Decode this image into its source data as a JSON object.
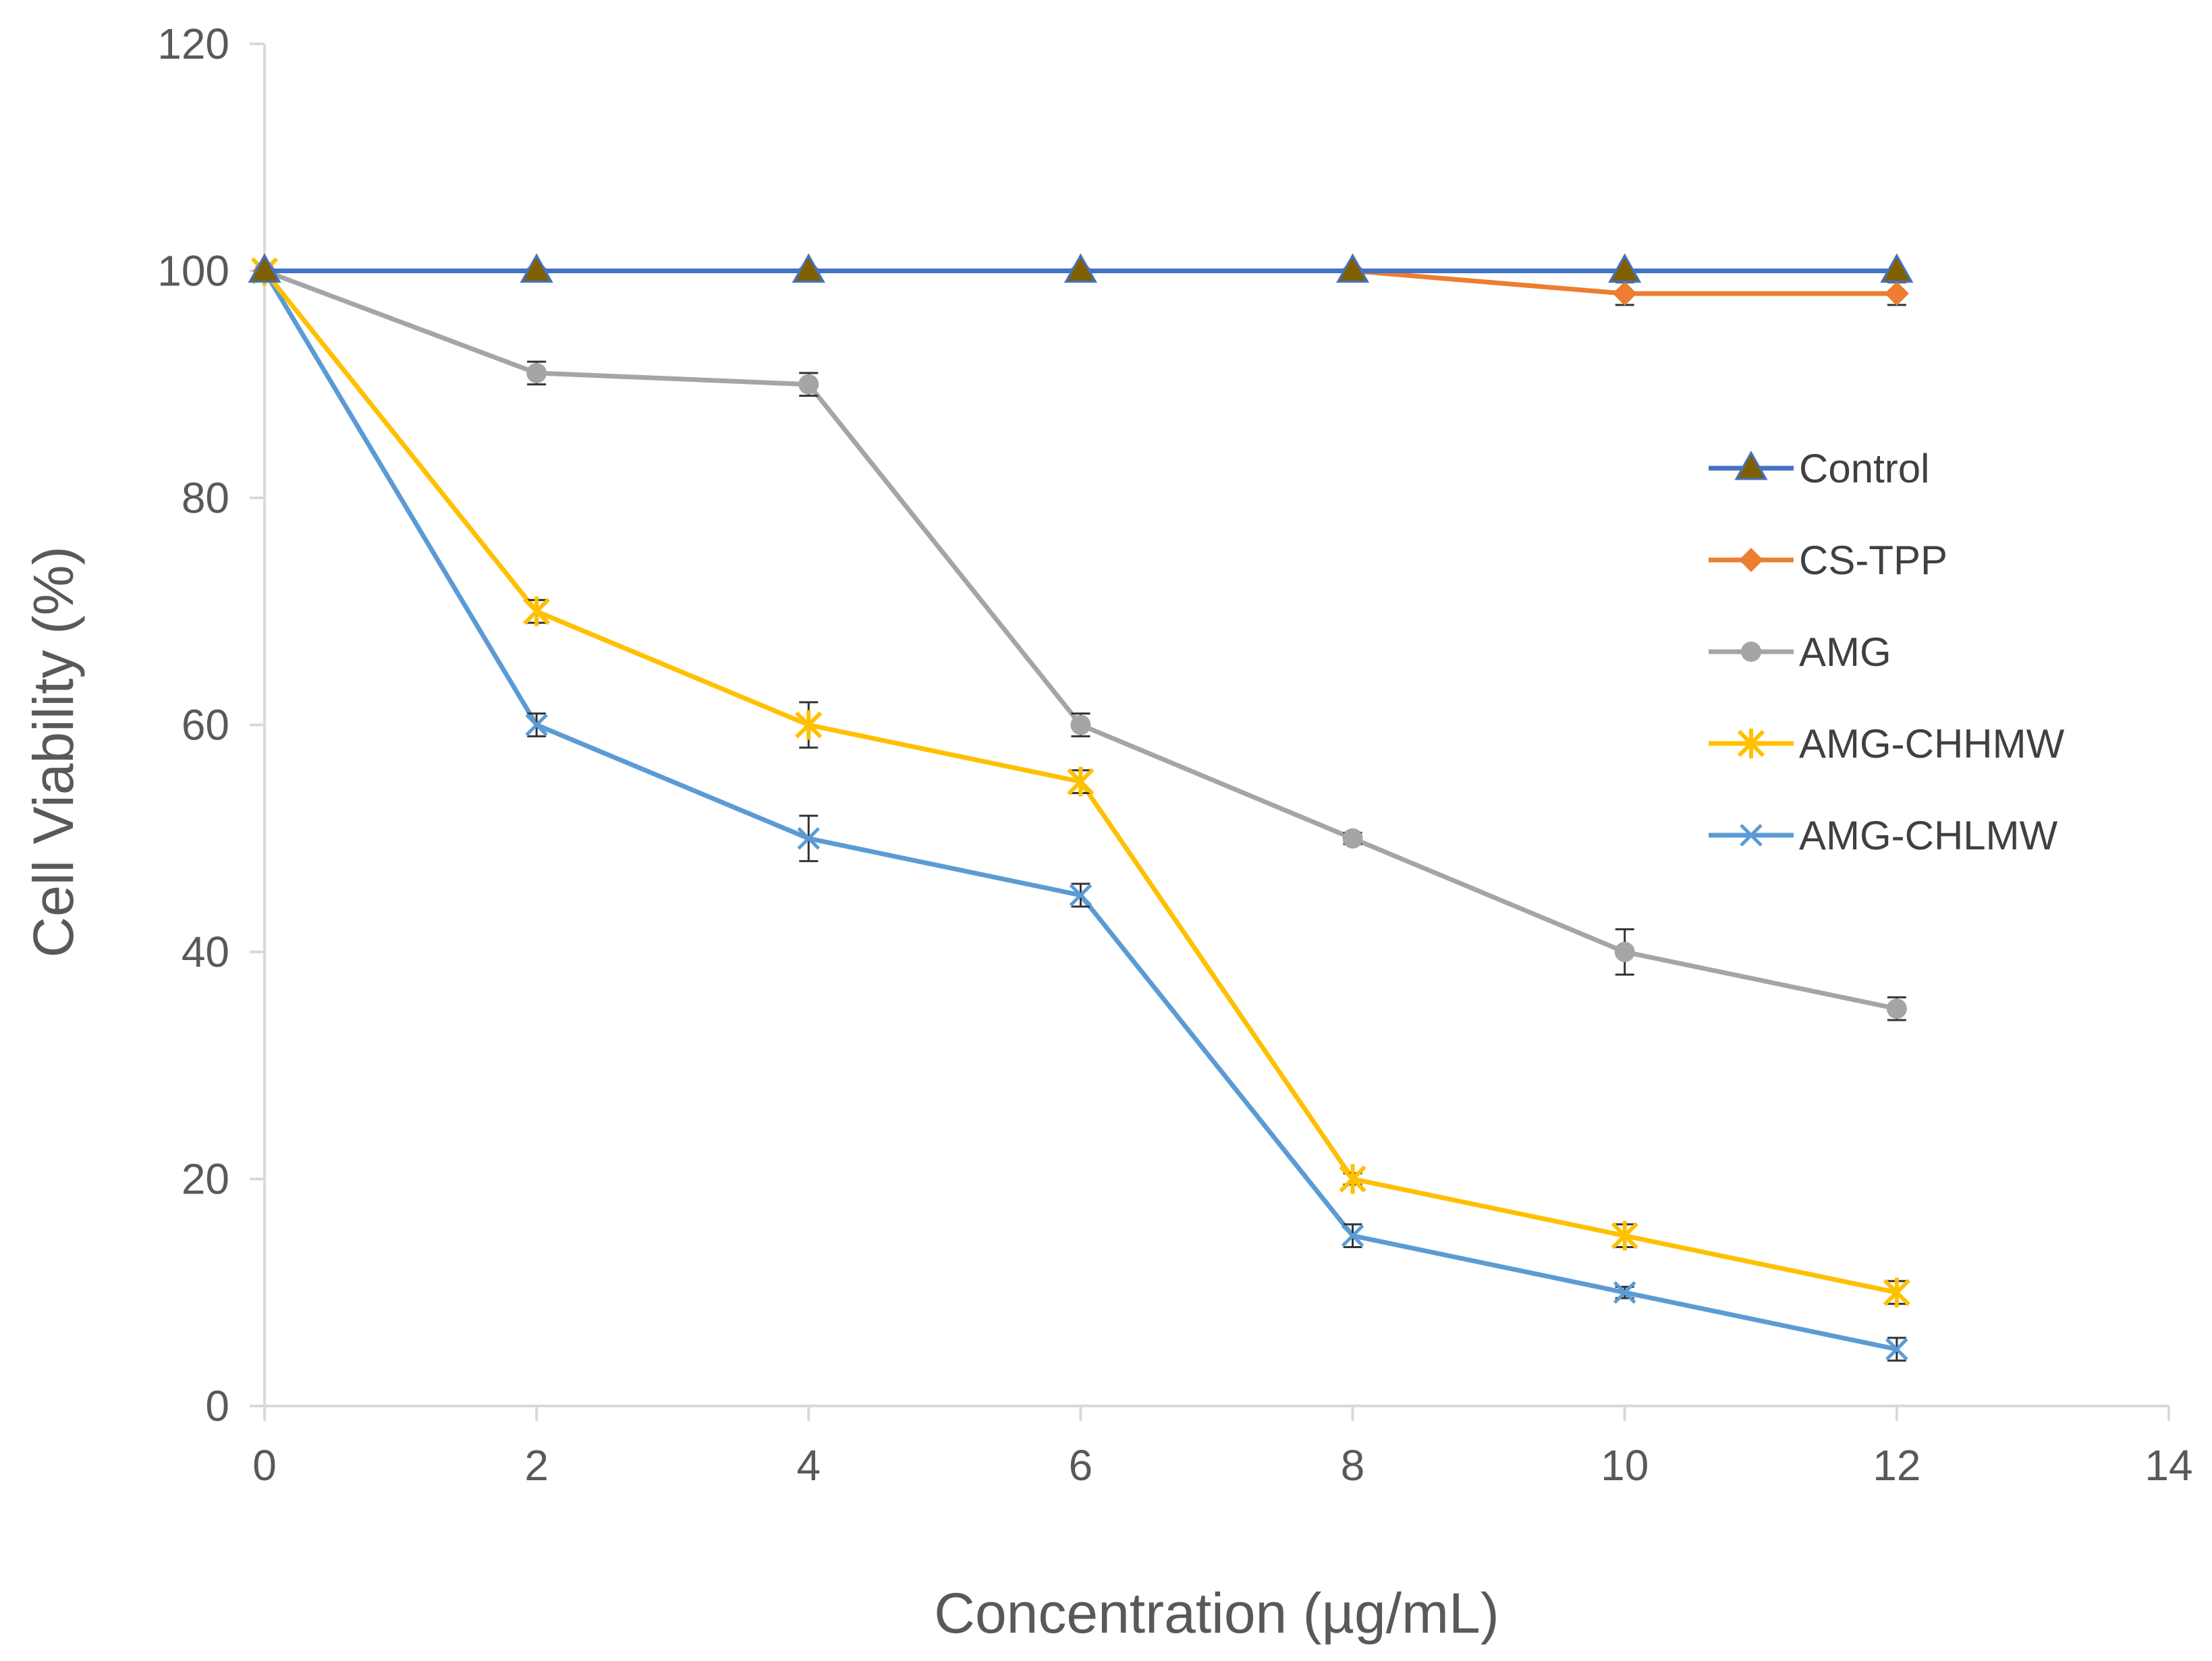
{
  "chart_data": {
    "type": "line",
    "title": "",
    "xlabel": "Concentration (µg/mL)",
    "ylabel": "Cell Viability (%)",
    "xlim": [
      0,
      14
    ],
    "ylim": [
      0,
      120
    ],
    "xticks": [
      0,
      2,
      4,
      6,
      8,
      10,
      12,
      14
    ],
    "yticks": [
      0,
      20,
      40,
      60,
      80,
      100,
      120
    ],
    "grid": false,
    "legend_position": "right",
    "series": [
      {
        "name": "Control",
        "color": "#4472C4",
        "marker": "triangle",
        "marker_color": "#7F6000",
        "x": [
          0,
          2,
          4,
          6,
          8,
          10,
          12
        ],
        "y": [
          100,
          100,
          100,
          100,
          100,
          100,
          100
        ],
        "error": [
          0,
          0,
          0,
          0,
          0,
          0,
          0
        ]
      },
      {
        "name": "CS-TPP",
        "color": "#ED7D31",
        "marker": "diamond",
        "x": [
          0,
          2,
          4,
          6,
          8,
          10,
          12
        ],
        "y": [
          100,
          100,
          100,
          100,
          100,
          98,
          98
        ],
        "error": [
          0,
          0,
          0,
          0,
          0,
          1,
          1
        ]
      },
      {
        "name": "AMG",
        "color": "#A5A5A5",
        "marker": "circle",
        "x": [
          0,
          2,
          4,
          6,
          8,
          10,
          12
        ],
        "y": [
          100,
          91,
          90,
          60,
          50,
          40,
          35
        ],
        "error": [
          0,
          1,
          1,
          1,
          0.5,
          2,
          1
        ]
      },
      {
        "name": "AMG-CHHMW",
        "color": "#FFC000",
        "marker": "star",
        "x": [
          0,
          2,
          4,
          6,
          8,
          10,
          12
        ],
        "y": [
          100,
          70,
          60,
          55,
          20,
          15,
          10
        ],
        "error": [
          0,
          1,
          2,
          1,
          0.5,
          1,
          1
        ]
      },
      {
        "name": "AMG-CHLMW",
        "color": "#5B9BD5",
        "marker": "x",
        "x": [
          0,
          2,
          4,
          6,
          8,
          10,
          12
        ],
        "y": [
          100,
          60,
          50,
          45,
          15,
          10,
          5
        ],
        "error": [
          0,
          1,
          2,
          1,
          1,
          0.5,
          1
        ]
      }
    ]
  }
}
